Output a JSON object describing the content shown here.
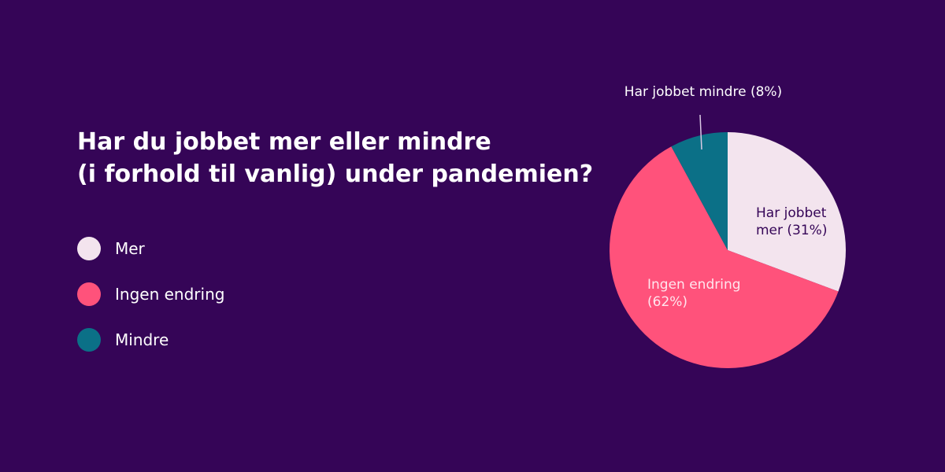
{
  "colors": {
    "background": "#350557",
    "mer": "#f3e4ee",
    "ingen_endring": "#ff527b",
    "mindre": "#0b7087",
    "label_dark": "#350557",
    "label_light": "#ffe6ee",
    "text": "#ffffff"
  },
  "title": {
    "line1": "Har du jobbet mer eller mindre",
    "line2": "(i forhold til vanlig) under pandemien?"
  },
  "legend": [
    {
      "label": "Mer",
      "color": "#f3e4ee"
    },
    {
      "label": "Ingen endring",
      "color": "#ff527b"
    },
    {
      "label": "Mindre",
      "color": "#0b7087"
    }
  ],
  "chart_data": {
    "type": "pie",
    "title": "Har du jobbet mer eller mindre (i forhold til vanlig) under pandemien?",
    "legend_position": "left",
    "start_angle_deg": 0,
    "direction": "clockwise",
    "slices": [
      {
        "category": "Mer",
        "value": 31,
        "unit": "%",
        "color": "#f3e4ee",
        "label_lines": [
          "Har jobbet",
          "mer (31%)"
        ]
      },
      {
        "category": "Ingen endring",
        "value": 62,
        "unit": "%",
        "color": "#ff527b",
        "label_lines": [
          "Ingen endring",
          "(62%)"
        ]
      },
      {
        "category": "Mindre",
        "value": 8,
        "unit": "%",
        "color": "#0b7087",
        "label_lines": [
          "Har jobbet mindre (8%)"
        ]
      }
    ]
  }
}
